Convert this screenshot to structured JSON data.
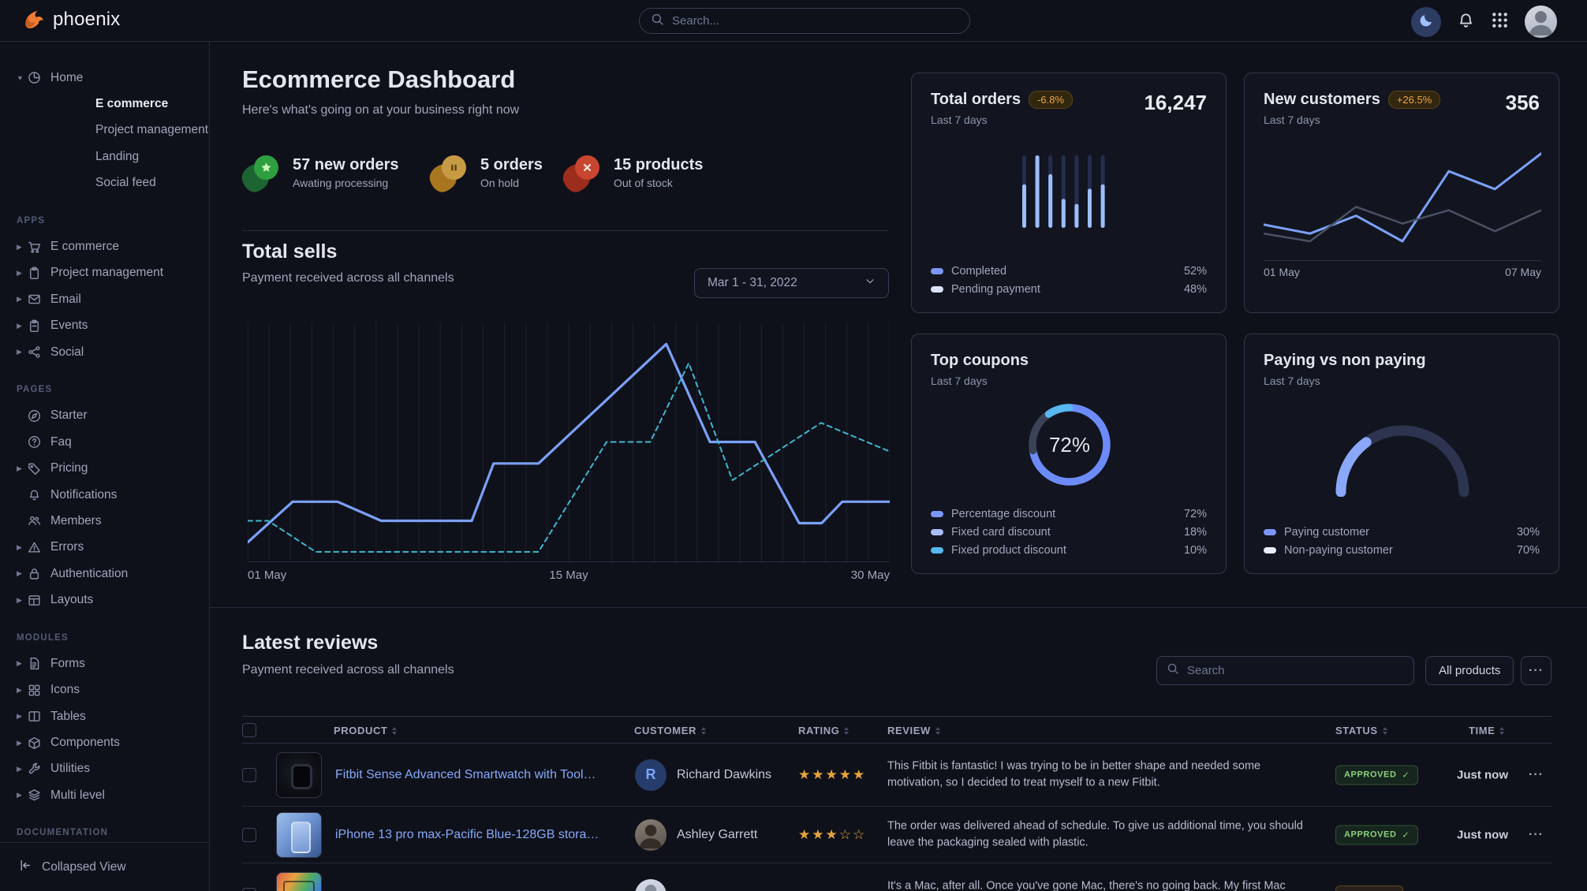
{
  "header": {
    "brand": "phoenix",
    "search_placeholder": "Search...",
    "icons": [
      "moon-icon",
      "bell-icon",
      "apps-grid-icon",
      "avatar"
    ]
  },
  "sidebar": {
    "home": {
      "label": "Home",
      "icon": "pie",
      "children": [
        {
          "label": "E commerce",
          "active": true
        },
        {
          "label": "Project management",
          "active": false
        },
        {
          "label": "Landing",
          "active": false
        },
        {
          "label": "Social feed",
          "active": false
        }
      ]
    },
    "sections": [
      {
        "title": "APPS",
        "items": [
          {
            "label": "E commerce",
            "icon": "cart",
            "caret": true
          },
          {
            "label": "Project management",
            "icon": "clipboard",
            "caret": true
          },
          {
            "label": "Email",
            "icon": "mail",
            "caret": true
          },
          {
            "label": "Events",
            "icon": "calendar",
            "caret": true
          },
          {
            "label": "Social",
            "icon": "share",
            "caret": true
          }
        ]
      },
      {
        "title": "PAGES",
        "items": [
          {
            "label": "Starter",
            "icon": "compass",
            "caret": false
          },
          {
            "label": "Faq",
            "icon": "question",
            "caret": false
          },
          {
            "label": "Pricing",
            "icon": "tag",
            "caret": true
          },
          {
            "label": "Notifications",
            "icon": "bell",
            "caret": false
          },
          {
            "label": "Members",
            "icon": "users",
            "caret": false
          },
          {
            "label": "Errors",
            "icon": "warning",
            "caret": true
          },
          {
            "label": "Authentication",
            "icon": "lock",
            "caret": true
          },
          {
            "label": "Layouts",
            "icon": "layout",
            "caret": true
          }
        ]
      },
      {
        "title": "MODULES",
        "items": [
          {
            "label": "Forms",
            "icon": "file",
            "caret": true
          },
          {
            "label": "Icons",
            "icon": "grid",
            "caret": true
          },
          {
            "label": "Tables",
            "icon": "columns",
            "caret": true
          },
          {
            "label": "Components",
            "icon": "box",
            "caret": true
          },
          {
            "label": "Utilities",
            "icon": "wrench",
            "caret": true
          },
          {
            "label": "Multi level",
            "icon": "layers",
            "caret": true
          }
        ]
      },
      {
        "title": "DOCUMENTATION",
        "items": []
      }
    ],
    "footer": {
      "label": "Collapsed View",
      "icon": "collapse"
    }
  },
  "main": {
    "title": "Ecommerce Dashboard",
    "subtitle": "Here's what's going on at your business right now",
    "stats": [
      {
        "value": "57 new orders",
        "sub": "Awating processing",
        "color": "green",
        "glyph": "star"
      },
      {
        "value": "5 orders",
        "sub": "On hold",
        "color": "orange",
        "glyph": "pause"
      },
      {
        "value": "15 products",
        "sub": "Out of stock",
        "color": "red",
        "glyph": "x"
      }
    ],
    "total_sells": {
      "title": "Total sells",
      "subtitle": "Payment received across all channels",
      "date_range": "Mar 1 - 31, 2022"
    }
  },
  "cards": {
    "total_orders": {
      "title": "Total orders",
      "badge": "-6.8%",
      "period": "Last 7 days",
      "value": "16,247",
      "legend": [
        {
          "label": "Completed",
          "value": "52%",
          "color": "#7b96f9"
        },
        {
          "label": "Pending payment",
          "value": "48%",
          "color": "#d9e2fb"
        }
      ]
    },
    "new_customers": {
      "title": "New customers",
      "badge": "+26.5%",
      "period": "Last 7 days",
      "value": "356",
      "x_labels": [
        "01 May",
        "07 May"
      ]
    },
    "top_coupons": {
      "title": "Top coupons",
      "period": "Last 7 days",
      "center_label": "72%",
      "legend": [
        {
          "label": "Percentage discount",
          "value": "72%",
          "color": "#7b96f9"
        },
        {
          "label": "Fixed card discount",
          "value": "18%",
          "color": "#a9bdfa"
        },
        {
          "label": "Fixed product discount",
          "value": "10%",
          "color": "#57b8f0"
        }
      ]
    },
    "paying": {
      "title": "Paying vs non paying",
      "period": "Last 7 days",
      "legend": [
        {
          "label": "Paying customer",
          "value": "30%",
          "color": "#7b96f9"
        },
        {
          "label": "Non-paying customer",
          "value": "70%",
          "color": "#e7edfd"
        }
      ]
    }
  },
  "chart_data": [
    {
      "id": "total_sells",
      "type": "line",
      "title": "Total sells",
      "x_labels": [
        "01 May",
        "15 May",
        "30 May"
      ],
      "grid": true,
      "grid_vlines": 30,
      "y_note": "values are % of chart height (0 = bottom, 100 = top); no y axis shown",
      "series": [
        {
          "name": "sells-solid",
          "style": "solid",
          "color": "#7ba0f8",
          "width": 3.2,
          "points": [
            [
              0,
              8
            ],
            [
              7,
              25
            ],
            [
              14,
              25
            ],
            [
              20.8,
              17
            ],
            [
              34.9,
              17
            ],
            [
              38.3,
              41
            ],
            [
              45.3,
              41
            ],
            [
              65.2,
              91
            ],
            [
              72,
              50
            ],
            [
              79,
              50
            ],
            [
              85.9,
              16
            ],
            [
              89.4,
              16
            ],
            [
              92.6,
              25
            ],
            [
              100,
              25
            ]
          ]
        },
        {
          "name": "sells-dashed",
          "style": "dashed",
          "color": "#3fb7cf",
          "width": 2,
          "points": [
            [
              0,
              17
            ],
            [
              3.2,
              17
            ],
            [
              10.6,
              4
            ],
            [
              45.3,
              4
            ],
            [
              55.9,
              50
            ],
            [
              62.7,
              50
            ],
            [
              68.7,
              83
            ],
            [
              75.5,
              34
            ],
            [
              89.3,
              58
            ],
            [
              100,
              46
            ]
          ]
        }
      ]
    },
    {
      "id": "total_orders",
      "type": "bar",
      "title": "Total orders",
      "bars": 7,
      "completed_pct": [
        60,
        100,
        74,
        40,
        33,
        54,
        60
      ],
      "colors": {
        "completed": "#9dbdfe",
        "pending_track": "#232e4e"
      },
      "legend": [
        {
          "label": "Completed",
          "value": 52
        },
        {
          "label": "Pending payment",
          "value": 48
        }
      ]
    },
    {
      "id": "new_customers",
      "type": "line",
      "title": "New customers",
      "x_labels": [
        "01 May",
        "07 May"
      ],
      "y_note": "values are % of chart height (0 = bottom, 100 = top); no y axis shown",
      "series": [
        {
          "name": "current",
          "style": "solid",
          "color": "#7ba0f8",
          "width": 3,
          "points": [
            [
              0,
              32
            ],
            [
              16.7,
              24
            ],
            [
              33.3,
              40
            ],
            [
              50,
              17
            ],
            [
              66.7,
              80
            ],
            [
              83.3,
              64
            ],
            [
              100,
              96
            ]
          ]
        },
        {
          "name": "previous",
          "style": "solid",
          "color": "#4a5165",
          "width": 2.5,
          "points": [
            [
              0,
              24
            ],
            [
              16.7,
              17
            ],
            [
              33.3,
              48
            ],
            [
              50,
              33
            ],
            [
              66.7,
              45
            ],
            [
              83.3,
              26
            ],
            [
              100,
              45
            ]
          ]
        }
      ]
    },
    {
      "id": "top_coupons",
      "type": "pie",
      "title": "Top coupons",
      "donut": true,
      "center_label": "72%",
      "labels": [
        "Percentage discount",
        "Fixed card discount",
        "Fixed product discount"
      ],
      "values": [
        72,
        18,
        10
      ],
      "colors": [
        "#6d8bf8",
        "#3b4358",
        "#57b8f0"
      ]
    },
    {
      "id": "paying",
      "type": "gauge",
      "title": "Paying vs non paying",
      "labels": [
        "Paying customer",
        "Non-paying customer"
      ],
      "values": [
        30,
        70
      ],
      "colors": [
        "#8aa7fa",
        "#2c3450"
      ]
    }
  ],
  "reviews": {
    "title": "Latest reviews",
    "subtitle": "Payment received across all channels",
    "search_placeholder": "Search",
    "filter_label": "All products",
    "more_label": "···",
    "columns": [
      {
        "key": "product",
        "label": "PRODUCT"
      },
      {
        "key": "customer",
        "label": "CUSTOMER"
      },
      {
        "key": "rating",
        "label": "RATING"
      },
      {
        "key": "review",
        "label": "REVIEW"
      },
      {
        "key": "status",
        "label": "STATUS"
      },
      {
        "key": "time",
        "label": "TIME"
      }
    ],
    "rows": [
      {
        "product": "Fitbit Sense Advanced Smartwatch with Tools fo...",
        "thumb": "watch",
        "customer": "Richard Dawkins",
        "avatar": "letter",
        "avatar_letter": "R",
        "rating": 5,
        "review": "This Fitbit is fantastic! I was trying to be in better shape and needed some motivation, so I decided to treat myself to a new Fitbit.",
        "status": "APPROVED",
        "status_color": "success",
        "time": "Just now"
      },
      {
        "product": "iPhone 13 pro max-Pacific Blue-128GB storage",
        "thumb": "iphone",
        "customer": "Ashley Garrett",
        "avatar": "photo-dark",
        "avatar_letter": "",
        "rating": 3,
        "review": "The order was delivered ahead of schedule. To give us additional time, you should leave the packaging sealed with plastic.",
        "status": "APPROVED",
        "status_color": "success",
        "time": "Just now"
      },
      {
        "product": "",
        "thumb": "laptop",
        "customer": "",
        "avatar": "photo-light",
        "avatar_letter": "",
        "rating": null,
        "review": "It's a Mac, after all. Once you've gone Mac, there's no going back. My first Mac lasted...",
        "status": "",
        "status_color": "warning",
        "time": ""
      }
    ]
  }
}
